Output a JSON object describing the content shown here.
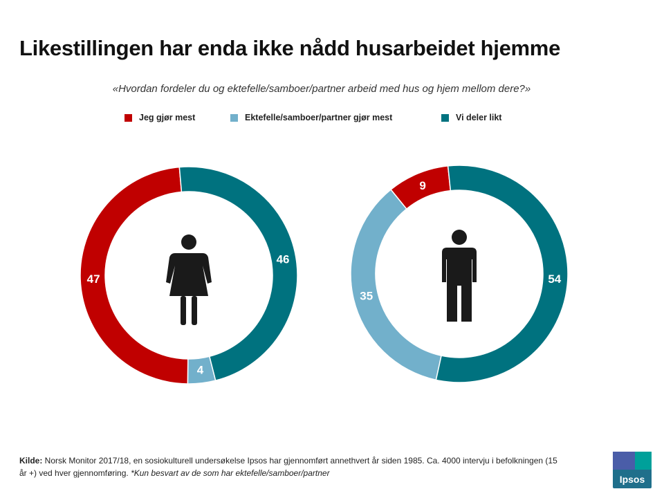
{
  "title": "Likestillingen har enda ikke nådd husarbeidet hjemme",
  "subtitle": "«Hvordan fordeler du og ektefelle/samboer/partner arbeid med hus og hjem mellom dere?»",
  "legend": [
    {
      "label": "Jeg gjør mest",
      "color": "#c00000"
    },
    {
      "label": "Ektefelle/samboer/partner gjør mest",
      "color": "#72b0cb"
    },
    {
      "label": "Vi deler likt",
      "color": "#00727f"
    }
  ],
  "chart_data": [
    {
      "type": "pie",
      "variant": "donut",
      "group": "female",
      "center_icon": "female-person-icon",
      "categories": [
        "Jeg gjør mest",
        "Ektefelle/samboer/partner gjør mest",
        "Vi deler likt"
      ],
      "values": [
        47,
        4,
        46
      ],
      "data_labels": [
        "47",
        "4",
        "46"
      ],
      "colors": [
        "#c00000",
        "#72b0cb",
        "#00727f"
      ]
    },
    {
      "type": "pie",
      "variant": "donut",
      "group": "male",
      "center_icon": "male-person-icon",
      "categories": [
        "Jeg gjør mest",
        "Ektefelle/samboer/partner gjør mest",
        "Vi deler likt"
      ],
      "values": [
        9,
        35,
        54
      ],
      "data_labels": [
        "9",
        "35",
        "54"
      ],
      "colors": [
        "#c00000",
        "#72b0cb",
        "#00727f"
      ]
    }
  ],
  "footer": {
    "source_label": "Kilde:",
    "source_text": " Norsk Monitor 2017/18,  en sosiokulturell undersøkelse Ipsos har gjennomført annethvert år siden 1985. Ca. 4000  intervju i befolkningen (15 år +) ved hver gjennomføring.  ",
    "note": "*Kun besvart av de som har ektefelle/samboer/partner"
  },
  "logo": {
    "text": "Ipsos"
  }
}
